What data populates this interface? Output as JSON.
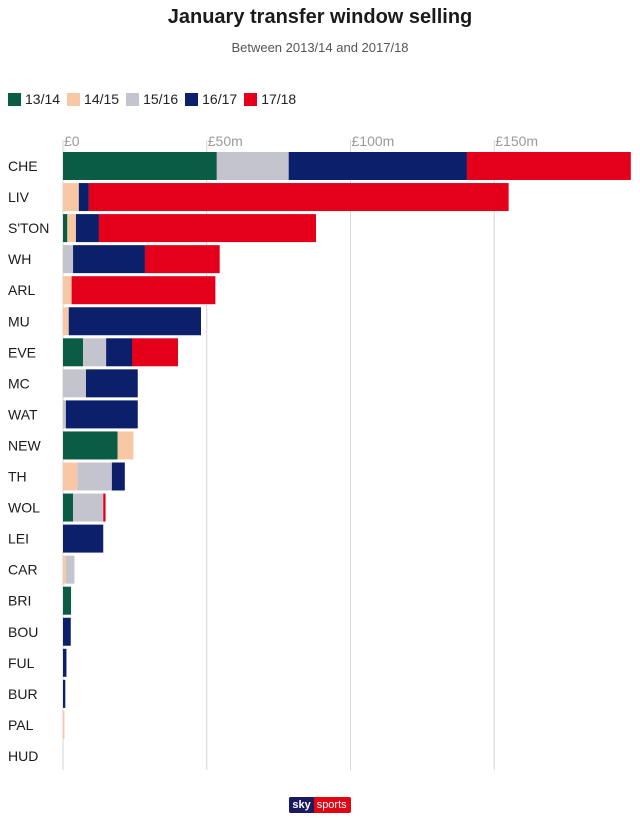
{
  "chart_data": {
    "type": "bar",
    "orientation": "horizontal",
    "stacked": true,
    "title": "January transfer window selling",
    "subtitle": "Between 2013/14 and 2017/18",
    "xlim": [
      0,
      198
    ],
    "x_ticks": [
      0,
      50,
      100,
      150
    ],
    "x_tick_labels": [
      "£0",
      "£50m",
      "£100m",
      "£150m"
    ],
    "grid": true,
    "legend_position": "top-left",
    "categories": [
      "CHE",
      "LIV",
      "S'TON",
      "WH",
      "ARL",
      "MU",
      "EVE",
      "MC",
      "WAT",
      "NEW",
      "TH",
      "WOL",
      "LEI",
      "CAR",
      "BRI",
      "BOU",
      "FUL",
      "BUR",
      "PAL",
      "HUD"
    ],
    "series": [
      {
        "name": "13/14",
        "color": "#0b5c45",
        "values": [
          53.5,
          0,
          1.5,
          0,
          0,
          0,
          7,
          0,
          0,
          19,
          0,
          3.5,
          0,
          0,
          2.8,
          0,
          0,
          0,
          0,
          0
        ]
      },
      {
        "name": "14/15",
        "color": "#f8c8a4",
        "values": [
          0,
          5.5,
          3,
          0,
          3,
          2,
          0,
          0,
          0,
          5.5,
          5,
          0,
          0,
          1,
          0,
          0,
          0,
          0,
          0.5,
          0
        ]
      },
      {
        "name": "15/16",
        "color": "#c4c4cf",
        "values": [
          25,
          0,
          0,
          3.5,
          0,
          0,
          8,
          8,
          1,
          0,
          12,
          10.5,
          0,
          3,
          0,
          0,
          0,
          0,
          0,
          0
        ]
      },
      {
        "name": "16/17",
        "color": "#0b1f6b",
        "values": [
          62,
          3.5,
          8,
          25,
          0,
          46,
          9,
          18,
          25,
          0,
          4.5,
          0,
          14,
          0,
          0,
          2.7,
          1.2,
          0.8,
          0,
          0
        ]
      },
      {
        "name": "17/18",
        "color": "#e4001b",
        "values": [
          57,
          146,
          75.5,
          26,
          50,
          0,
          16,
          0,
          0,
          0,
          0,
          0.8,
          0,
          0,
          0,
          0,
          0,
          0,
          0,
          0
        ]
      }
    ]
  },
  "brand": {
    "sky": "sky",
    "sports": "sports"
  }
}
